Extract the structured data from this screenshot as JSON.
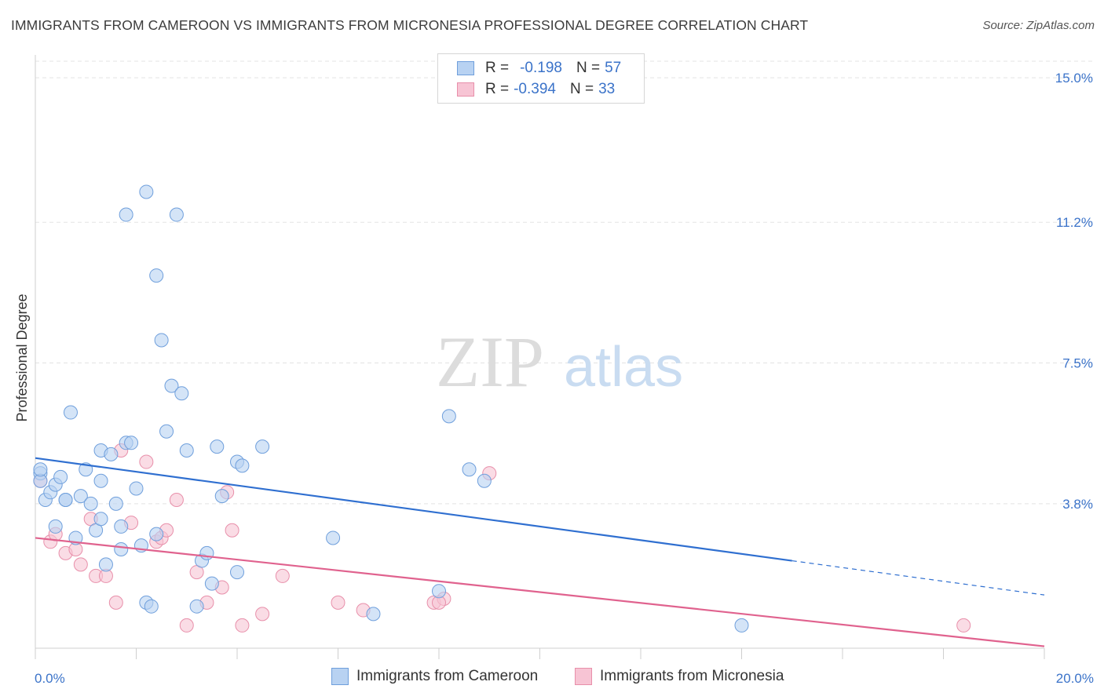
{
  "header": {
    "title": "IMMIGRANTS FROM CAMEROON VS IMMIGRANTS FROM MICRONESIA PROFESSIONAL DEGREE CORRELATION CHART",
    "source": "Source: ZipAtlas.com"
  },
  "watermark": {
    "zip": "ZIP",
    "atlas": "atlas"
  },
  "colors": {
    "cameroon_fill": "#b8d2f2",
    "cameroon_stroke": "#6f9fdc",
    "cameroon_line": "#2f6fd0",
    "micronesia_fill": "#f7c4d4",
    "micronesia_stroke": "#e88faa",
    "micronesia_line": "#e0628e",
    "tick_label": "#3b73c9"
  },
  "legend": {
    "r_label": "R =",
    "n_label": "N =",
    "rows": [
      {
        "series": "cameroon",
        "r": "-0.198",
        "n": "57"
      },
      {
        "series": "micronesia",
        "r": "-0.394",
        "n": "33"
      }
    ]
  },
  "chart_data": {
    "type": "scatter",
    "title": "IMMIGRANTS FROM CAMEROON VS IMMIGRANTS FROM MICRONESIA PROFESSIONAL DEGREE CORRELATION CHART",
    "xlabel": "",
    "ylabel": "Professional Degree",
    "xlim": [
      0,
      20
    ],
    "ylim": [
      0,
      15.6
    ],
    "x_tick_labels": [
      "0.0%",
      "20.0%"
    ],
    "y_ticks": [
      {
        "value": 3.8,
        "label": "3.8%"
      },
      {
        "value": 7.5,
        "label": "7.5%"
      },
      {
        "value": 11.2,
        "label": "11.2%"
      },
      {
        "value": 15.0,
        "label": "15.0%"
      }
    ],
    "grid": true,
    "legend_position": "top-center",
    "series": [
      {
        "name": "Immigrants from Cameroon",
        "key": "cameroon",
        "r": -0.198,
        "n": 57,
        "trend": {
          "x0": 0,
          "y0": 5.0,
          "x1": 15.0,
          "y1": 2.3,
          "dash_to_x": 20,
          "dash_to_y": 1.4
        },
        "points": [
          [
            0.1,
            4.6
          ],
          [
            0.1,
            4.4
          ],
          [
            0.2,
            3.9
          ],
          [
            0.3,
            4.1
          ],
          [
            0.4,
            4.3
          ],
          [
            0.5,
            4.5
          ],
          [
            0.6,
            3.9
          ],
          [
            0.6,
            3.9
          ],
          [
            0.7,
            6.2
          ],
          [
            0.8,
            2.9
          ],
          [
            0.4,
            3.2
          ],
          [
            0.9,
            4.0
          ],
          [
            1.0,
            4.7
          ],
          [
            1.1,
            3.8
          ],
          [
            1.2,
            3.1
          ],
          [
            1.3,
            3.4
          ],
          [
            1.3,
            4.4
          ],
          [
            1.4,
            2.2
          ],
          [
            1.3,
            5.2
          ],
          [
            1.5,
            5.1
          ],
          [
            1.6,
            3.8
          ],
          [
            1.7,
            3.2
          ],
          [
            1.7,
            2.6
          ],
          [
            1.8,
            5.4
          ],
          [
            1.9,
            5.4
          ],
          [
            2.0,
            4.2
          ],
          [
            2.1,
            2.7
          ],
          [
            2.2,
            1.2
          ],
          [
            2.4,
            3.0
          ],
          [
            2.6,
            5.7
          ],
          [
            2.7,
            6.9
          ],
          [
            2.9,
            6.7
          ],
          [
            3.0,
            5.2
          ],
          [
            3.2,
            1.1
          ],
          [
            3.3,
            2.3
          ],
          [
            3.4,
            2.5
          ],
          [
            3.5,
            1.7
          ],
          [
            3.6,
            5.3
          ],
          [
            3.7,
            4.0
          ],
          [
            4.0,
            2.0
          ],
          [
            4.0,
            4.9
          ],
          [
            4.1,
            4.8
          ],
          [
            4.5,
            5.3
          ],
          [
            5.9,
            2.9
          ],
          [
            6.7,
            0.9
          ],
          [
            8.0,
            1.5
          ],
          [
            8.2,
            6.1
          ],
          [
            8.6,
            4.7
          ],
          [
            8.9,
            4.4
          ],
          [
            1.8,
            11.4
          ],
          [
            2.2,
            12.0
          ],
          [
            2.8,
            11.4
          ],
          [
            2.4,
            9.8
          ],
          [
            2.5,
            8.1
          ],
          [
            2.3,
            1.1
          ],
          [
            14.0,
            0.6
          ],
          [
            0.1,
            4.7
          ]
        ]
      },
      {
        "name": "Immigrants from Micronesia",
        "key": "micronesia",
        "r": -0.394,
        "n": 33,
        "trend": {
          "x0": 0,
          "y0": 2.9,
          "x1": 20,
          "y1": 0.05
        },
        "points": [
          [
            0.1,
            4.4
          ],
          [
            0.3,
            2.8
          ],
          [
            0.4,
            3.0
          ],
          [
            0.6,
            2.5
          ],
          [
            0.8,
            2.6
          ],
          [
            0.9,
            2.2
          ],
          [
            1.1,
            3.4
          ],
          [
            1.2,
            1.9
          ],
          [
            1.4,
            1.9
          ],
          [
            1.6,
            1.2
          ],
          [
            1.7,
            5.2
          ],
          [
            1.9,
            3.3
          ],
          [
            2.2,
            4.9
          ],
          [
            2.4,
            2.8
          ],
          [
            2.5,
            2.9
          ],
          [
            2.6,
            3.1
          ],
          [
            2.8,
            3.9
          ],
          [
            3.0,
            0.6
          ],
          [
            3.2,
            2.0
          ],
          [
            3.4,
            1.2
          ],
          [
            3.7,
            1.6
          ],
          [
            3.8,
            4.1
          ],
          [
            3.9,
            3.1
          ],
          [
            4.1,
            0.6
          ],
          [
            4.5,
            0.9
          ],
          [
            4.9,
            1.9
          ],
          [
            6.0,
            1.2
          ],
          [
            6.5,
            1.0
          ],
          [
            7.9,
            1.2
          ],
          [
            8.1,
            1.3
          ],
          [
            9.0,
            4.6
          ],
          [
            18.4,
            0.6
          ],
          [
            8.0,
            1.2
          ]
        ]
      }
    ]
  },
  "bottom_legend": [
    {
      "key": "cameroon",
      "label": "Immigrants from Cameroon"
    },
    {
      "key": "micronesia",
      "label": "Immigrants from Micronesia"
    }
  ]
}
